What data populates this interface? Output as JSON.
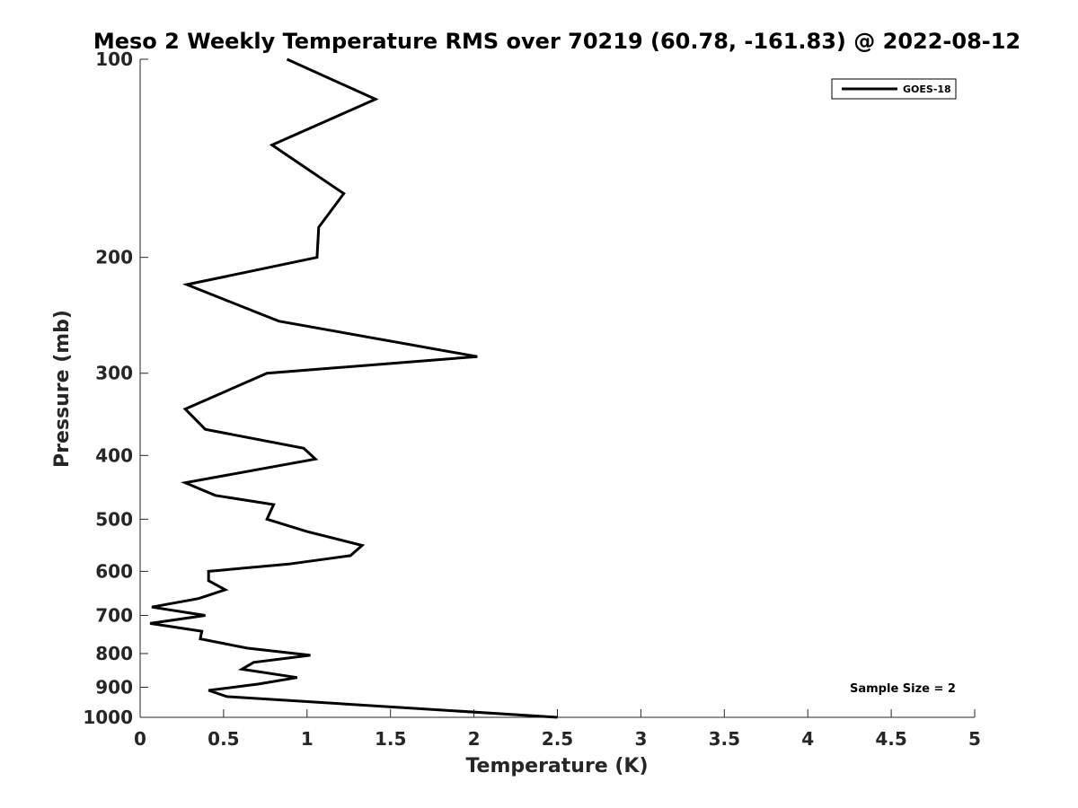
{
  "chart_data": {
    "type": "line",
    "title": "Meso 2 Weekly Temperature RMS over 70219 (60.78, -161.83) @ 2022-08-12",
    "xlabel": "Temperature (K)",
    "ylabel": "Pressure (mb)",
    "xlim": [
      0,
      5
    ],
    "ylim": [
      100,
      1000
    ],
    "y_scale": "log",
    "y_reversed": true,
    "xticks": [
      0,
      0.5,
      1,
      1.5,
      2,
      2.5,
      3,
      3.5,
      4,
      4.5,
      5
    ],
    "xtick_labels": [
      "0",
      "0.5",
      "1",
      "1.5",
      "2",
      "2.5",
      "3",
      "3.5",
      "4",
      "4.5",
      "5"
    ],
    "yticks": [
      100,
      200,
      300,
      400,
      500,
      600,
      700,
      800,
      900,
      1000
    ],
    "ytick_labels": [
      "100",
      "200",
      "300",
      "400",
      "500",
      "600",
      "700",
      "800",
      "900",
      "1000"
    ],
    "grid": false,
    "legend_position": "top-right",
    "series": [
      {
        "name": "GOES-18",
        "color": "#000000",
        "x": [
          0.88,
          1.41,
          0.79,
          1.22,
          1.07,
          1.06,
          0.28,
          0.83,
          2.02,
          0.76,
          0.27,
          0.39,
          0.98,
          1.05,
          0.27,
          0.45,
          0.8,
          0.76,
          1.0,
          1.33,
          1.26,
          0.89,
          0.41,
          0.41,
          0.51,
          0.35,
          0.07,
          0.39,
          0.06,
          0.37,
          0.36,
          0.64,
          1.02,
          0.68,
          0.61,
          0.94,
          0.71,
          0.41,
          0.52,
          2.5
        ],
        "y": [
          100,
          115,
          135,
          160,
          180,
          200,
          220,
          250,
          283,
          300,
          340,
          365,
          390,
          405,
          440,
          460,
          475,
          500,
          522,
          548,
          568,
          585,
          600,
          620,
          640,
          660,
          680,
          700,
          720,
          740,
          760,
          785,
          805,
          825,
          845,
          870,
          890,
          910,
          930,
          1000
        ]
      }
    ],
    "annotations": [
      "Sample Size = 2"
    ]
  }
}
